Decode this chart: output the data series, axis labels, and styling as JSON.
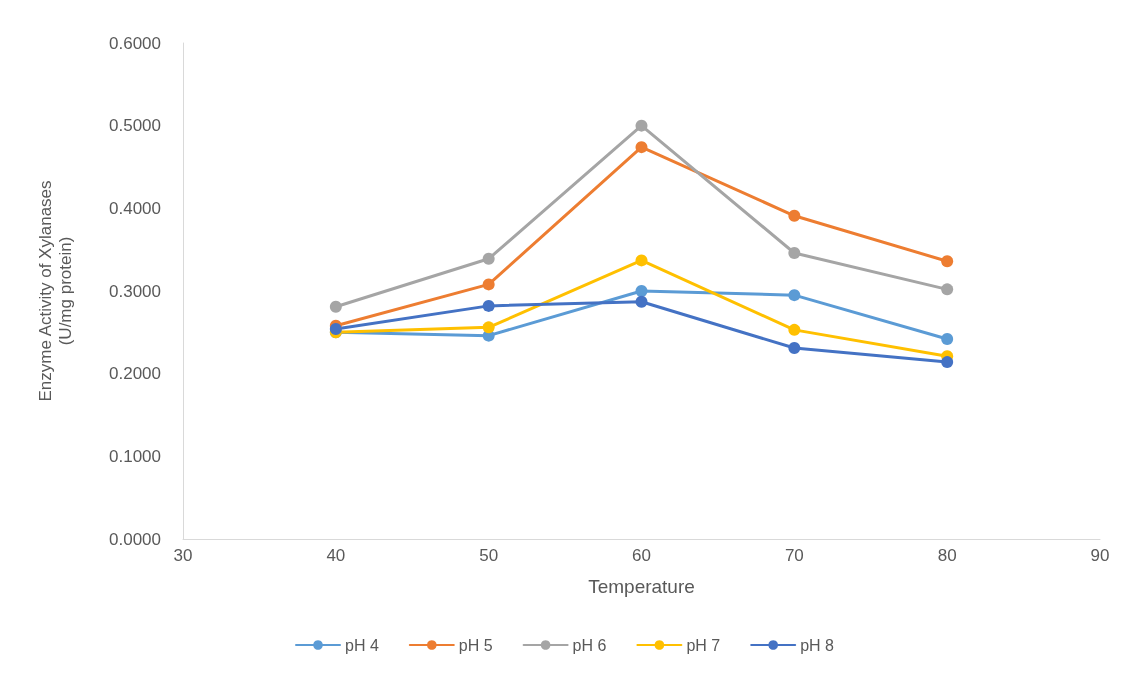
{
  "chart_data": {
    "type": "line",
    "xlabel": "Temperature",
    "ylabel": "Enzyme Activity of Xylanases\n(U/mg protein)",
    "x": [
      40,
      50,
      60,
      70,
      80
    ],
    "series": [
      {
        "name": "pH 4",
        "color": "#5b9bd5",
        "values": [
          0.25,
          0.246,
          0.3,
          0.295,
          0.242
        ]
      },
      {
        "name": "pH 5",
        "color": "#ed7d31",
        "values": [
          0.258,
          0.308,
          0.474,
          0.391,
          0.336
        ]
      },
      {
        "name": "pH 6",
        "color": "#a5a5a5",
        "values": [
          0.281,
          0.339,
          0.5,
          0.346,
          0.302
        ]
      },
      {
        "name": "pH 7",
        "color": "#ffc000",
        "values": [
          0.25,
          0.256,
          0.337,
          0.253,
          0.221
        ]
      },
      {
        "name": "pH 8",
        "color": "#4472c4",
        "values": [
          0.254,
          0.282,
          0.287,
          0.231,
          0.214
        ]
      }
    ],
    "xlim": [
      30,
      90
    ],
    "xticks": [
      30,
      40,
      50,
      60,
      70,
      80,
      90
    ],
    "ylim": [
      0,
      0.6
    ],
    "yticks": [
      {
        "value": 0,
        "label": "0.0000"
      },
      {
        "value": 0.1,
        "label": "0.1000"
      },
      {
        "value": 0.2,
        "label": "0.2000"
      },
      {
        "value": 0.3,
        "label": "0.3000"
      },
      {
        "value": 0.4,
        "label": "0.4000"
      },
      {
        "value": 0.5,
        "label": "0.5000"
      },
      {
        "value": 0.6,
        "label": "0.6000"
      }
    ],
    "grid": false,
    "legend": "bottom",
    "marker": "circle",
    "line_style": "solid"
  }
}
